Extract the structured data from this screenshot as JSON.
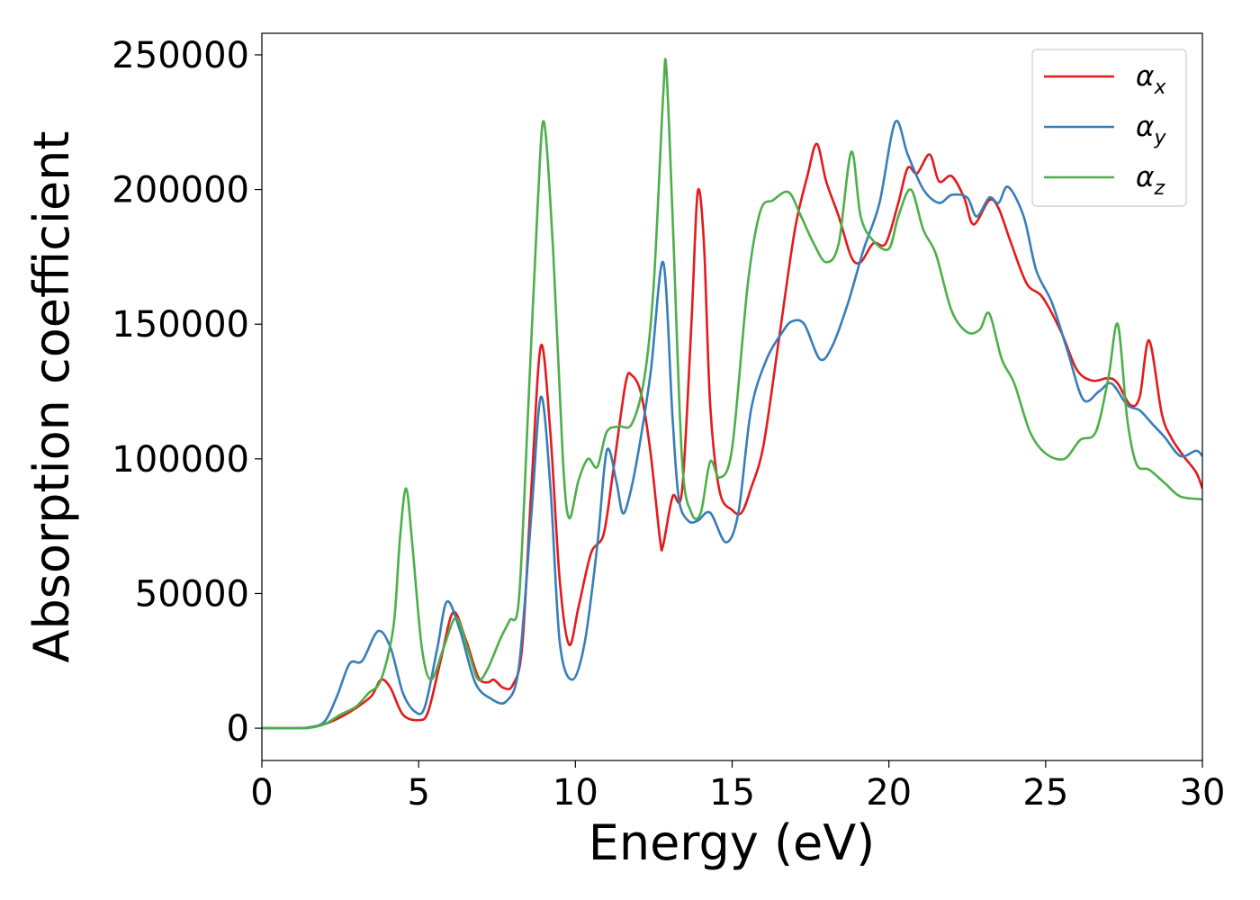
{
  "chart_data": {
    "type": "line",
    "title": "",
    "xlabel": "Energy (eV)",
    "ylabel": "Absorption coefficient",
    "xlim": [
      0,
      30
    ],
    "ylim": [
      -12000,
      258000
    ],
    "xticks": [
      0,
      5,
      10,
      15,
      20,
      25,
      30
    ],
    "yticks": [
      0,
      50000,
      100000,
      150000,
      200000,
      250000
    ],
    "xtick_labels": [
      "0",
      "5",
      "10",
      "15",
      "20",
      "25",
      "30"
    ],
    "ytick_labels": [
      "0",
      "50000",
      "100000",
      "150000",
      "200000",
      "250000"
    ],
    "grid": false,
    "legend": {
      "placement": "top-right",
      "entries": [
        {
          "symbol": "α",
          "subscript": "x",
          "color": "#e41a1c"
        },
        {
          "symbol": "α",
          "subscript": "y",
          "color": "#377eb8"
        },
        {
          "symbol": "α",
          "subscript": "z",
          "color": "#4daf4a"
        }
      ]
    },
    "series": [
      {
        "color": "#e41a1c",
        "points": [
          [
            0,
            0
          ],
          [
            1,
            0
          ],
          [
            1.5,
            200
          ],
          [
            2,
            1500
          ],
          [
            2.5,
            4000
          ],
          [
            3,
            7500
          ],
          [
            3.5,
            12000
          ],
          [
            3.8,
            18000
          ],
          [
            4.1,
            15000
          ],
          [
            4.5,
            5000
          ],
          [
            5,
            3000
          ],
          [
            5.3,
            6000
          ],
          [
            5.7,
            25000
          ],
          [
            6.1,
            43000
          ],
          [
            6.5,
            33000
          ],
          [
            6.9,
            19000
          ],
          [
            7.2,
            17000
          ],
          [
            7.4,
            18000
          ],
          [
            7.7,
            15000
          ],
          [
            8,
            16000
          ],
          [
            8.3,
            30000
          ],
          [
            8.6,
            90000
          ],
          [
            8.9,
            142000
          ],
          [
            9.2,
            110000
          ],
          [
            9.5,
            55000
          ],
          [
            9.8,
            31000
          ],
          [
            10.1,
            45000
          ],
          [
            10.5,
            65000
          ],
          [
            10.9,
            72000
          ],
          [
            11.2,
            95000
          ],
          [
            11.6,
            128000
          ],
          [
            11.8,
            131000
          ],
          [
            12.1,
            124000
          ],
          [
            12.4,
            102000
          ],
          [
            12.7,
            70000
          ],
          [
            12.8,
            68000
          ],
          [
            13.1,
            86000
          ],
          [
            13.4,
            88000
          ],
          [
            13.7,
            150000
          ],
          [
            13.9,
            199000
          ],
          [
            14.1,
            180000
          ],
          [
            14.3,
            120000
          ],
          [
            14.6,
            88000
          ],
          [
            15,
            81000
          ],
          [
            15.3,
            80000
          ],
          [
            15.6,
            89000
          ],
          [
            16,
            105000
          ],
          [
            16.5,
            145000
          ],
          [
            17,
            185000
          ],
          [
            17.4,
            205000
          ],
          [
            17.7,
            217000
          ],
          [
            18,
            203000
          ],
          [
            18.4,
            190000
          ],
          [
            18.8,
            175000
          ],
          [
            19.1,
            173000
          ],
          [
            19.5,
            180000
          ],
          [
            19.9,
            180000
          ],
          [
            20.3,
            195000
          ],
          [
            20.6,
            208000
          ],
          [
            20.9,
            206000
          ],
          [
            21.3,
            213000
          ],
          [
            21.6,
            203000
          ],
          [
            22,
            205000
          ],
          [
            22.4,
            197000
          ],
          [
            22.7,
            187000
          ],
          [
            23.2,
            196000
          ],
          [
            23.5,
            193000
          ],
          [
            23.9,
            180000
          ],
          [
            24.4,
            165000
          ],
          [
            24.9,
            160000
          ],
          [
            25.5,
            147000
          ],
          [
            26,
            133000
          ],
          [
            26.5,
            129000
          ],
          [
            27,
            130000
          ],
          [
            27.3,
            128000
          ],
          [
            27.7,
            120000
          ],
          [
            28,
            123000
          ],
          [
            28.3,
            144000
          ],
          [
            28.7,
            117000
          ],
          [
            29,
            108000
          ],
          [
            29.4,
            101000
          ],
          [
            29.8,
            95000
          ],
          [
            30,
            89000
          ]
        ]
      },
      {
        "color": "#377eb8",
        "points": [
          [
            0,
            0
          ],
          [
            1,
            0
          ],
          [
            1.5,
            300
          ],
          [
            2,
            2500
          ],
          [
            2.4,
            12000
          ],
          [
            2.8,
            24000
          ],
          [
            3.2,
            25000
          ],
          [
            3.7,
            36000
          ],
          [
            4.1,
            30000
          ],
          [
            4.5,
            13000
          ],
          [
            4.9,
            6000
          ],
          [
            5.2,
            8000
          ],
          [
            5.6,
            30000
          ],
          [
            5.9,
            47000
          ],
          [
            6.3,
            37000
          ],
          [
            6.8,
            17000
          ],
          [
            7.3,
            11000
          ],
          [
            7.8,
            10000
          ],
          [
            8.2,
            23000
          ],
          [
            8.6,
            80000
          ],
          [
            8.9,
            123000
          ],
          [
            9.2,
            90000
          ],
          [
            9.5,
            32000
          ],
          [
            9.9,
            18000
          ],
          [
            10.3,
            32000
          ],
          [
            10.7,
            68000
          ],
          [
            11,
            103000
          ],
          [
            11.3,
            92000
          ],
          [
            11.5,
            80000
          ],
          [
            11.7,
            85000
          ],
          [
            12,
            102000
          ],
          [
            12.4,
            132000
          ],
          [
            12.8,
            173000
          ],
          [
            13.1,
            115000
          ],
          [
            13.3,
            85000
          ],
          [
            13.6,
            77000
          ],
          [
            13.9,
            77000
          ],
          [
            14.3,
            80000
          ],
          [
            14.8,
            69000
          ],
          [
            15.2,
            80000
          ],
          [
            15.6,
            118000
          ],
          [
            16.1,
            137000
          ],
          [
            16.6,
            147000
          ],
          [
            16.9,
            151000
          ],
          [
            17.3,
            150000
          ],
          [
            17.8,
            137000
          ],
          [
            18.2,
            142000
          ],
          [
            18.7,
            158000
          ],
          [
            19.2,
            178000
          ],
          [
            19.7,
            195000
          ],
          [
            20.2,
            225000
          ],
          [
            20.6,
            213000
          ],
          [
            21.1,
            200000
          ],
          [
            21.6,
            195000
          ],
          [
            22,
            198000
          ],
          [
            22.5,
            197000
          ],
          [
            22.8,
            190000
          ],
          [
            23.2,
            197000
          ],
          [
            23.5,
            195000
          ],
          [
            23.8,
            201000
          ],
          [
            24.3,
            190000
          ],
          [
            24.7,
            170000
          ],
          [
            25.2,
            158000
          ],
          [
            25.7,
            140000
          ],
          [
            26.2,
            122000
          ],
          [
            26.7,
            125000
          ],
          [
            27.1,
            128000
          ],
          [
            27.6,
            120000
          ],
          [
            28,
            118000
          ],
          [
            28.4,
            113000
          ],
          [
            28.8,
            108000
          ],
          [
            29.3,
            101000
          ],
          [
            29.8,
            103000
          ],
          [
            30,
            101000
          ]
        ]
      },
      {
        "color": "#4daf4a",
        "points": [
          [
            0,
            0
          ],
          [
            1,
            0
          ],
          [
            1.5,
            100
          ],
          [
            2,
            1500
          ],
          [
            2.5,
            5000
          ],
          [
            3,
            8000
          ],
          [
            3.4,
            13000
          ],
          [
            3.8,
            18000
          ],
          [
            4.2,
            38000
          ],
          [
            4.4,
            70000
          ],
          [
            4.6,
            89000
          ],
          [
            4.8,
            68000
          ],
          [
            5.1,
            30000
          ],
          [
            5.4,
            18000
          ],
          [
            5.8,
            30000
          ],
          [
            6.2,
            41000
          ],
          [
            6.6,
            28000
          ],
          [
            6.9,
            18000
          ],
          [
            7.2,
            22000
          ],
          [
            7.6,
            33000
          ],
          [
            7.9,
            40000
          ],
          [
            8.2,
            48000
          ],
          [
            8.5,
            120000
          ],
          [
            8.8,
            195000
          ],
          [
            9,
            225000
          ],
          [
            9.3,
            175000
          ],
          [
            9.6,
            100000
          ],
          [
            9.8,
            78000
          ],
          [
            10.1,
            92000
          ],
          [
            10.4,
            100000
          ],
          [
            10.7,
            97000
          ],
          [
            11,
            110000
          ],
          [
            11.4,
            112000
          ],
          [
            11.8,
            113000
          ],
          [
            12.2,
            130000
          ],
          [
            12.5,
            165000
          ],
          [
            12.8,
            235000
          ],
          [
            12.9,
            245000
          ],
          [
            13.1,
            190000
          ],
          [
            13.4,
            100000
          ],
          [
            13.7,
            80000
          ],
          [
            14,
            80000
          ],
          [
            14.3,
            99000
          ],
          [
            14.6,
            93000
          ],
          [
            15,
            104000
          ],
          [
            15.5,
            165000
          ],
          [
            15.9,
            192000
          ],
          [
            16.3,
            196000
          ],
          [
            16.8,
            199000
          ],
          [
            17.2,
            190000
          ],
          [
            17.6,
            180000
          ],
          [
            18,
            173000
          ],
          [
            18.4,
            180000
          ],
          [
            18.8,
            214000
          ],
          [
            19.1,
            190000
          ],
          [
            19.5,
            181000
          ],
          [
            20,
            178000
          ],
          [
            20.3,
            190000
          ],
          [
            20.7,
            200000
          ],
          [
            21.1,
            185000
          ],
          [
            21.5,
            176000
          ],
          [
            22,
            155000
          ],
          [
            22.5,
            147000
          ],
          [
            22.9,
            148000
          ],
          [
            23.2,
            154000
          ],
          [
            23.6,
            137000
          ],
          [
            24,
            128000
          ],
          [
            24.5,
            110000
          ],
          [
            25,
            102000
          ],
          [
            25.6,
            100000
          ],
          [
            26.1,
            107000
          ],
          [
            26.6,
            110000
          ],
          [
            27,
            130000
          ],
          [
            27.3,
            150000
          ],
          [
            27.6,
            115000
          ],
          [
            27.9,
            98000
          ],
          [
            28.3,
            96000
          ],
          [
            28.8,
            91000
          ],
          [
            29.3,
            86000
          ],
          [
            30,
            85000
          ]
        ]
      }
    ]
  }
}
